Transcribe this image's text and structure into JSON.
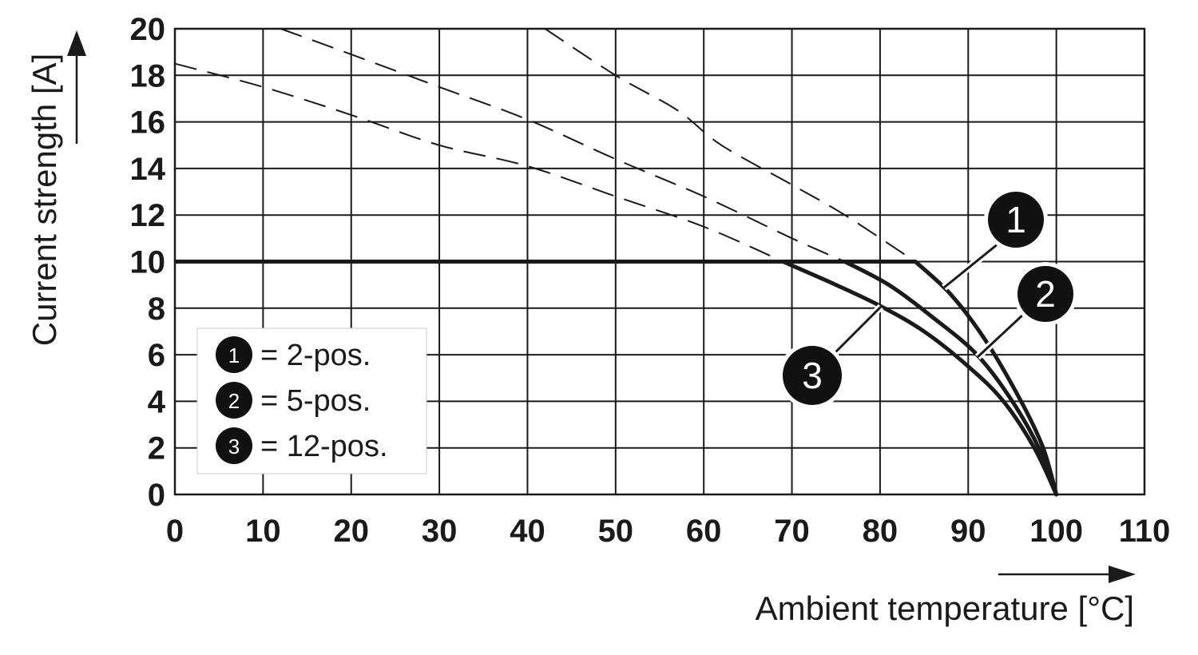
{
  "chart_data": {
    "type": "line",
    "xlabel": "Ambient temperature [°C]",
    "ylabel": "Current strength [A]",
    "xlim": [
      0,
      110
    ],
    "ylim": [
      0,
      20
    ],
    "x_ticks": [
      "0",
      "10",
      "20",
      "30",
      "40",
      "50",
      "60",
      "70",
      "80",
      "90",
      "100",
      "110"
    ],
    "y_ticks": [
      "0",
      "2",
      "4",
      "6",
      "8",
      "10",
      "12",
      "14",
      "16",
      "18",
      "20"
    ],
    "grid": true,
    "legend_position": "bottom-left",
    "limit_line": {
      "y": 10,
      "x_start": 0
    },
    "series": [
      {
        "marker": "1",
        "legend": "= 2-pos.",
        "solid": [
          [
            84,
            10
          ],
          [
            88,
            8.6
          ],
          [
            92,
            6.6
          ],
          [
            96,
            4
          ],
          [
            98.5,
            2
          ],
          [
            100,
            0
          ]
        ],
        "dashed": [
          [
            42,
            20
          ],
          [
            50,
            18
          ],
          [
            57,
            16.5
          ],
          [
            62,
            15
          ],
          [
            70,
            13.3
          ],
          [
            76,
            12
          ],
          [
            84,
            10
          ]
        ]
      },
      {
        "marker": "2",
        "legend": "= 5-pos.",
        "solid": [
          [
            76,
            10
          ],
          [
            81,
            9
          ],
          [
            86,
            7.6
          ],
          [
            91,
            6
          ],
          [
            95,
            4
          ],
          [
            98,
            2
          ],
          [
            100,
            0
          ]
        ],
        "dashed": [
          [
            12,
            20
          ],
          [
            20,
            18.9
          ],
          [
            30,
            17.5
          ],
          [
            40,
            16.1
          ],
          [
            50,
            14.4
          ],
          [
            60,
            12.8
          ],
          [
            70,
            11
          ],
          [
            76,
            10
          ]
        ]
      },
      {
        "marker": "3",
        "legend": "= 12-pos.",
        "solid": [
          [
            69,
            10
          ],
          [
            75,
            9
          ],
          [
            80,
            8.1
          ],
          [
            85,
            7
          ],
          [
            90,
            5.5
          ],
          [
            94,
            4
          ],
          [
            97.5,
            2
          ],
          [
            100,
            0
          ]
        ],
        "dashed": [
          [
            0,
            18.5
          ],
          [
            10,
            17.5
          ],
          [
            20,
            16.3
          ],
          [
            30,
            15
          ],
          [
            40,
            14.1
          ],
          [
            50,
            12.8
          ],
          [
            60,
            11.5
          ],
          [
            69,
            10
          ]
        ]
      }
    ]
  }
}
